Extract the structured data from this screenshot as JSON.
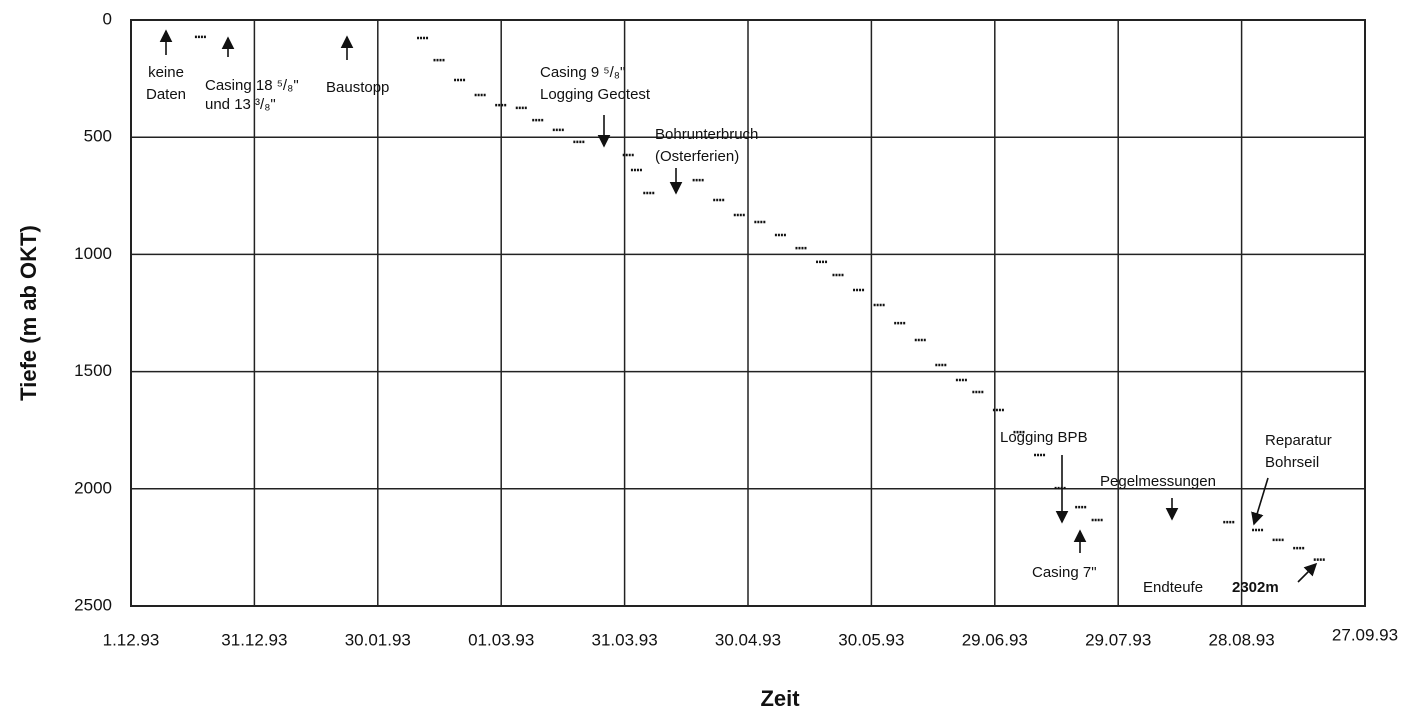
{
  "chart_data": {
    "type": "scatter",
    "x_label": "Zeit",
    "y_label": "Tiefe  (m ab OKT)",
    "xlim": [
      0,
      300
    ],
    "xticks": [
      {
        "value": 0,
        "label": "1.12.93"
      },
      {
        "value": 30,
        "label": "31.12.93"
      },
      {
        "value": 60,
        "label": "30.01.93"
      },
      {
        "value": 90,
        "label": "01.03.93"
      },
      {
        "value": 120,
        "label": "31.03.93"
      },
      {
        "value": 150,
        "label": "30.04.93"
      },
      {
        "value": 180,
        "label": "30.05.93"
      },
      {
        "value": 210,
        "label": "29.06.93"
      },
      {
        "value": 240,
        "label": "29.07.93"
      },
      {
        "value": 270,
        "label": "28.08.93"
      },
      {
        "value": 300,
        "label": "27.09.93"
      }
    ],
    "ylim": [
      2500,
      0
    ],
    "yticks": [
      0,
      500,
      1000,
      1500,
      2000,
      2500
    ],
    "grid": true,
    "series": [
      {
        "color": "#111111",
        "x": [
          17,
          71,
          75,
          80,
          85,
          90,
          95,
          99,
          104,
          109,
          121,
          123,
          126,
          138,
          143,
          148,
          153,
          158,
          163,
          168,
          172,
          177,
          182,
          187,
          192,
          197,
          202,
          206,
          211,
          216,
          221,
          226,
          231,
          235,
          267,
          274,
          279,
          284,
          289
        ],
        "values": [
          72,
          77,
          171,
          256,
          320,
          363,
          375,
          427,
          469,
          520,
          576,
          640,
          738,
          683,
          768,
          832,
          862,
          917,
          973,
          1032,
          1088,
          1152,
          1216,
          1293,
          1365,
          1472,
          1536,
          1587,
          1664,
          1758,
          1856,
          1997,
          2078,
          2133,
          2142,
          2176,
          2218,
          2253,
          2302
        ]
      }
    ],
    "annotations": [
      [
        "keine",
        "Daten"
      ],
      [
        "Casing 18 ⁵/₈\"",
        "und 13 ³/₈\""
      ],
      [
        "Baustopp"
      ],
      [
        "Casing 9 ⁵/₈\"",
        "Logging Geotest"
      ],
      [
        "Bohrunterbruch",
        "(Osterferien)"
      ],
      [
        "Logging BPB"
      ],
      [
        "Pegelmessungen"
      ],
      [
        "Casing 7\""
      ],
      [
        "Reparatur",
        "Bohrseil"
      ],
      [
        "Endteufe"
      ],
      [
        "2302m"
      ]
    ]
  }
}
